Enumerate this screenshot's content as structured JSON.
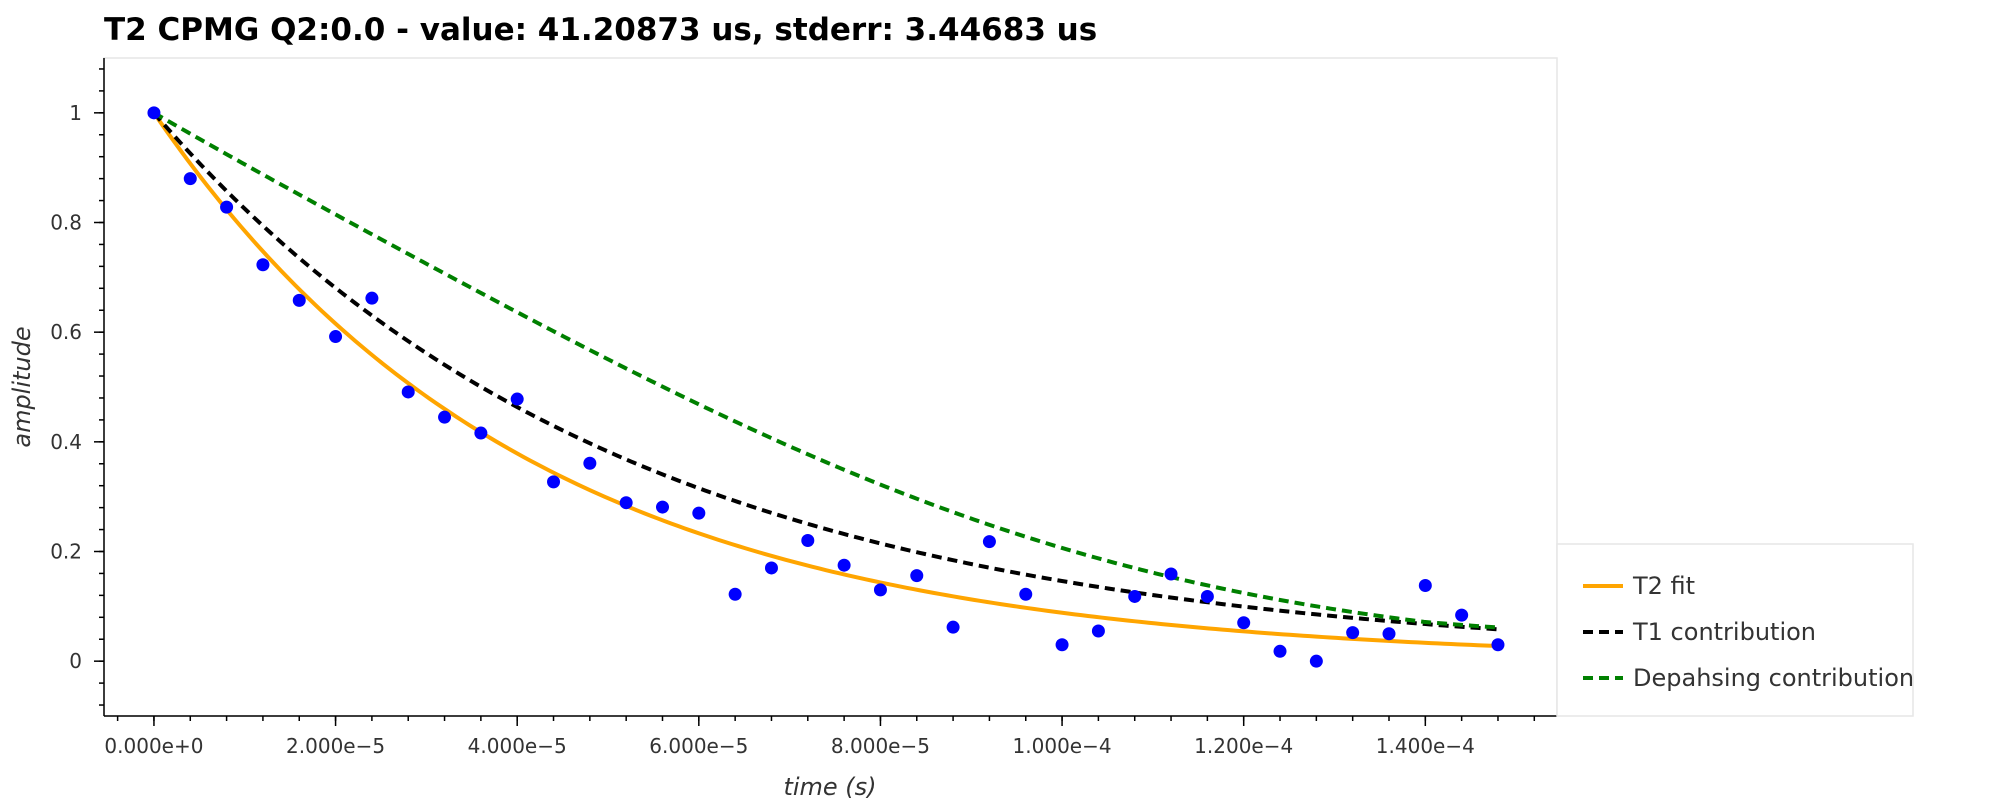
{
  "chart_data": {
    "type": "scatter",
    "title": "T2 CPMG Q2:0.0 - value: 41.20873 us, stderr: 3.44683 us",
    "xlabel": "time (s)",
    "ylabel": "amplitude",
    "xlim": [
      -5.5e-06,
      0.0001545
    ],
    "ylim": [
      -0.1,
      1.1
    ],
    "x_ticks": [
      0,
      2e-05,
      4e-05,
      6e-05,
      8e-05,
      0.0001,
      0.00012,
      0.00014
    ],
    "x_tick_labels": [
      "0.000e+0",
      "2.000e−5",
      "4.000e−5",
      "6.000e−5",
      "8.000e−5",
      "1.000e−4",
      "1.200e−4",
      "1.400e−4"
    ],
    "y_ticks": [
      0,
      0.2,
      0.4,
      0.6,
      0.8,
      1
    ],
    "y_tick_labels": [
      "0",
      "0.2",
      "0.4",
      "0.6",
      "0.8",
      "1"
    ],
    "grid": false,
    "legend_position": "bottom-right, outside plot",
    "points": {
      "color": "#0000ff",
      "x": [
        0,
        4e-06,
        8e-06,
        1.2e-05,
        1.6e-05,
        2e-05,
        2.4e-05,
        2.8e-05,
        3.2e-05,
        3.6e-05,
        4e-05,
        4.4e-05,
        4.8e-05,
        5.2e-05,
        5.6e-05,
        6e-05,
        6.4e-05,
        6.8e-05,
        7.2e-05,
        7.6e-05,
        8e-05,
        8.4e-05,
        8.8e-05,
        9.2e-05,
        9.6e-05,
        0.0001,
        0.000104,
        0.000108,
        0.000112,
        0.000116,
        0.00012,
        0.000124,
        0.000128,
        0.000132,
        0.000136,
        0.00014,
        0.000144,
        0.000148
      ],
      "y": [
        1.0,
        0.88,
        0.828,
        0.723,
        0.658,
        0.592,
        0.662,
        0.491,
        0.445,
        0.416,
        0.478,
        0.327,
        0.361,
        0.289,
        0.281,
        0.27,
        0.122,
        0.17,
        0.22,
        0.175,
        0.13,
        0.156,
        0.062,
        0.218,
        0.122,
        0.03,
        0.055,
        0.118,
        0.159,
        0.118,
        0.07,
        0.018,
        0.0,
        0.052,
        0.05,
        0.138,
        0.084,
        0.03
      ]
    },
    "series": [
      {
        "name": "T2 fit",
        "color": "#ffa500",
        "dash": "solid",
        "decay_time_s": 4.12087e-05,
        "y0": 1.0
      },
      {
        "name": "T1 contribution",
        "color": "#000000",
        "dash": "dashed",
        "decay_time_s": 5.2e-05,
        "y0": 1.0
      },
      {
        "name": "Depahsing contribution",
        "color": "#008000",
        "dash": "dashed",
        "decay_time_s": 5.2e-05,
        "y0": 1.0,
        "curve_shape": "gaussian",
        "gaussian_decay_time_s": 8.7e-05
      }
    ],
    "curve_x_range": [
      0,
      0.000148
    ]
  }
}
